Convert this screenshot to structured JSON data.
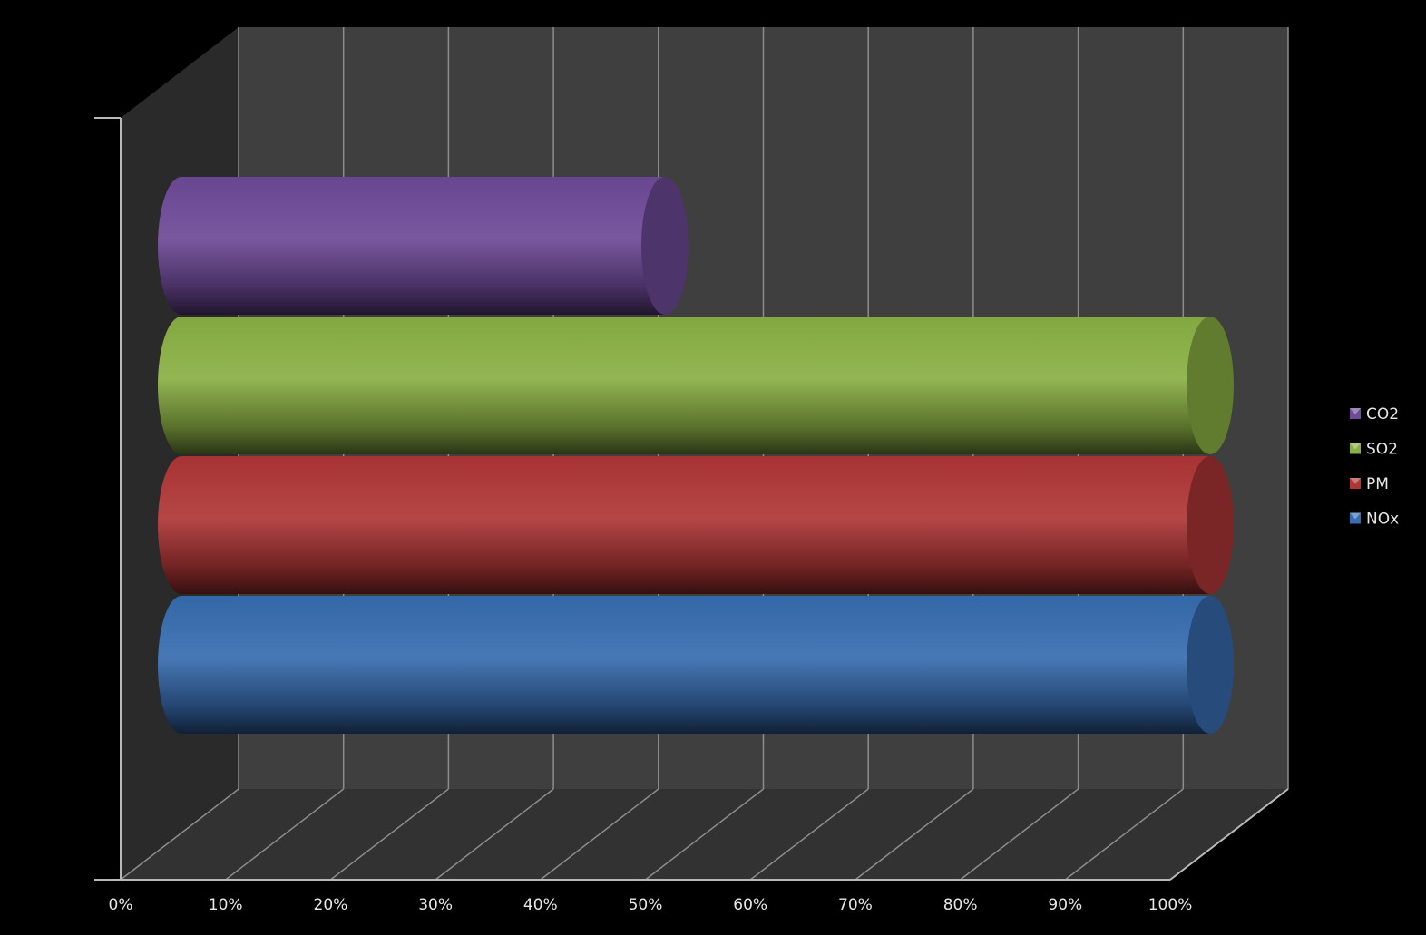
{
  "chart_data": {
    "type": "bar",
    "orientation": "horizontal",
    "style": "3d-cylinder",
    "stacked": "percent",
    "title": "",
    "xlabel": "",
    "ylabel": "",
    "xlim": [
      0,
      100
    ],
    "x_ticks": [
      "0%",
      "10%",
      "20%",
      "30%",
      "40%",
      "50%",
      "60%",
      "70%",
      "80%",
      "90%",
      "100%"
    ],
    "grid": true,
    "legend_position": "right",
    "series": [
      {
        "name": "CO2",
        "value": 47,
        "color": "#6e4a98"
      },
      {
        "name": "SO2",
        "value": 100,
        "color": "#8ab043"
      },
      {
        "name": "PM",
        "value": 100,
        "color": "#b03636"
      },
      {
        "name": "NOx",
        "value": 100,
        "color": "#376cb0"
      }
    ],
    "colors": {
      "background": "#000000",
      "back_wall": "#3f3f3f",
      "side_wall": "#2a2a2a",
      "floor": "#323232",
      "gridline": "#8c8c8c"
    }
  }
}
